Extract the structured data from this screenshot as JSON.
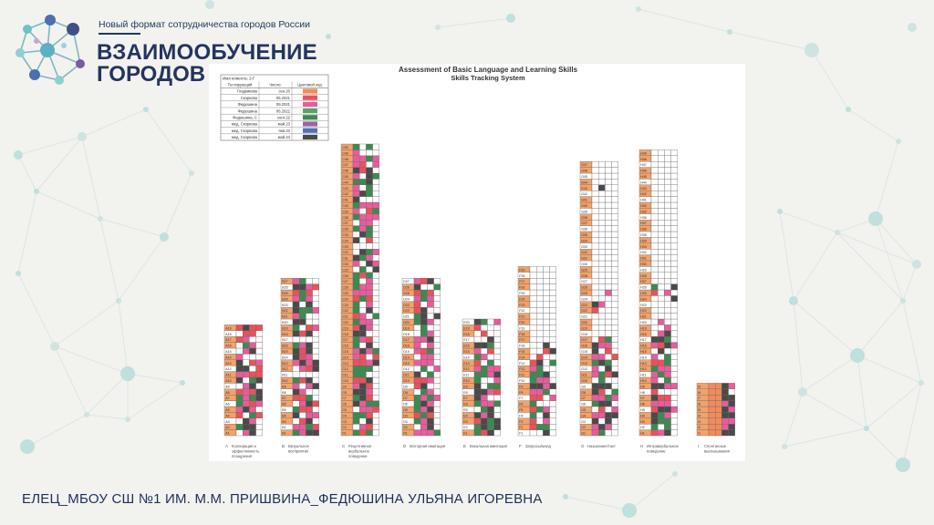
{
  "header": {
    "tagline": "Новый формат сотрудничества городов России",
    "brand_line1": "ВЗАИМООБУЧЕНИЕ",
    "brand_line2": "ГОРОДОВ"
  },
  "document": {
    "title": "Assessment of Basic Language and Learning Skills",
    "subtitle": "Skills Tracking System",
    "info_table": {
      "client_name_label": "Имя клиента: 2-Г",
      "headers": [
        "Тестирующий",
        "Число:",
        "Цветовой код:"
      ],
      "rows": [
        {
          "tester": "Гладкикова",
          "date": "сен.20",
          "color": "#f28b5b"
        },
        {
          "tester": "Скоркова",
          "date": "06.2021",
          "color": "#e8525b"
        },
        {
          "tester": "Федюшина",
          "date": "09.2021",
          "color": "#e85c9c"
        },
        {
          "tester": "Федюшина",
          "date": "06.2022",
          "color": "#5aa36c"
        },
        {
          "tester": "Федюшина, С",
          "date": "сент.22",
          "color": "#3d8a50"
        },
        {
          "tester": "мед. Скоркова",
          "date": "май.23",
          "color": "#9a62a8"
        },
        {
          "tester": "мед. Скоркова",
          "date": "янв.23",
          "color": "#4d72b8"
        },
        {
          "tester": "мед. Скоркова",
          "date": "май.24",
          "color": "#4a4a4a"
        }
      ]
    },
    "columns": [
      {
        "letter": "A",
        "prefix": "A",
        "count": 19,
        "label_lines": [
          "Кооперация и",
          "эффективность",
          "поощрения"
        ]
      },
      {
        "letter": "B",
        "prefix": "B",
        "count": 27,
        "label_lines": [
          "Визуальное",
          "восприятие"
        ]
      },
      {
        "letter": "C",
        "prefix": "C",
        "count": 50,
        "label_lines": [
          "Рецептивное",
          "вербальное",
          "поведение"
        ]
      },
      {
        "letter": "D",
        "prefix": "D",
        "count": 27,
        "label_lines": [
          "Моторная имитация"
        ]
      },
      {
        "letter": "E",
        "prefix": "E",
        "count": 20,
        "label_lines": [
          "Вокальная имитация"
        ]
      },
      {
        "letter": "F",
        "prefix": "F",
        "count": 29,
        "label_lines": [
          "Запросы/мэнд"
        ]
      },
      {
        "letter": "G",
        "prefix": "G",
        "count": 47,
        "label_lines": [
          "Называние/такт"
        ]
      },
      {
        "letter": "H",
        "prefix": "H",
        "count": 49,
        "label_lines": [
          "Интравербальное",
          "поведение"
        ]
      },
      {
        "letter": "I",
        "prefix": "I",
        "count": 9,
        "label_lines": [
          "Спонтанные",
          "высказывания"
        ]
      }
    ]
  },
  "footer": {
    "caption": "ЕЛЕЦ_МБОУ СШ №1 ИМ. М.М. ПРИШВИНА_ФЕДЮШИНА УЛЬЯНА ИГОРЕВНА"
  },
  "colors": {
    "accent_teal": "#8ecfd0",
    "brand_navy": "#24345e",
    "label_orange": "#f2a26b",
    "cell_red": "#e8525b",
    "cell_pink": "#e85c9c",
    "cell_green": "#3d8a50",
    "cell_dark": "#4a4a4a"
  }
}
